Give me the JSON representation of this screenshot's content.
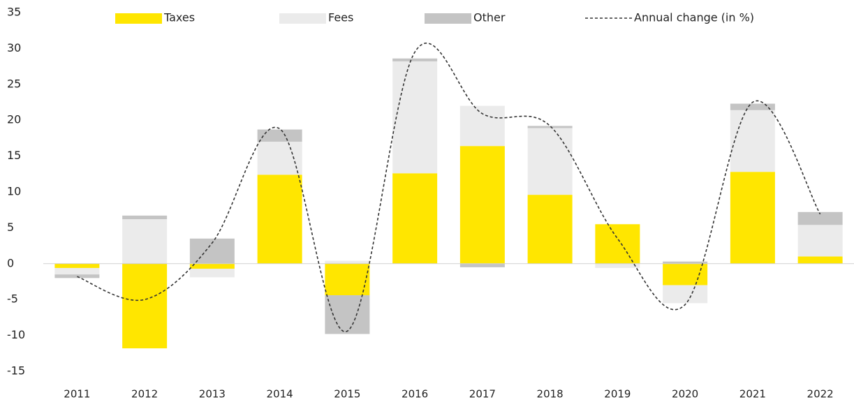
{
  "chart_data": {
    "type": "stacked_bar_line",
    "categories": [
      "2011",
      "2012",
      "2013",
      "2014",
      "2015",
      "2016",
      "2017",
      "2018",
      "2019",
      "2020",
      "2021",
      "2022"
    ],
    "series": [
      {
        "name": "Taxes",
        "color": "#ffe600",
        "values": [
          -0.6,
          -11.8,
          -0.7,
          12.4,
          -4.4,
          12.6,
          16.4,
          9.6,
          5.5,
          -3.0,
          12.8,
          1.0
        ]
      },
      {
        "name": "Fees",
        "color": "#ebebeb",
        "values": [
          -0.9,
          6.2,
          -1.2,
          4.6,
          0.4,
          15.6,
          5.6,
          9.3,
          -0.6,
          -2.5,
          8.6,
          4.4
        ]
      },
      {
        "name": "Other",
        "color": "#c4c4c4",
        "values": [
          -0.5,
          0.5,
          3.5,
          1.7,
          -5.4,
          0.4,
          -0.5,
          0.3,
          0,
          0.3,
          0.9,
          1.8
        ]
      },
      {
        "name": "Annual change (in %)",
        "type": "line",
        "color": "#333333",
        "dashed": true,
        "values": [
          -1.8,
          -5.0,
          2.9,
          18.8,
          -9.4,
          29.5,
          20.9,
          19.2,
          3.5,
          -5.7,
          22.5,
          6.9
        ]
      }
    ],
    "ylim": [
      -15,
      35
    ],
    "yticks": [
      -15,
      -10,
      -5,
      0,
      5,
      10,
      15,
      20,
      25,
      30,
      35
    ],
    "grid": false,
    "legend": "top"
  }
}
